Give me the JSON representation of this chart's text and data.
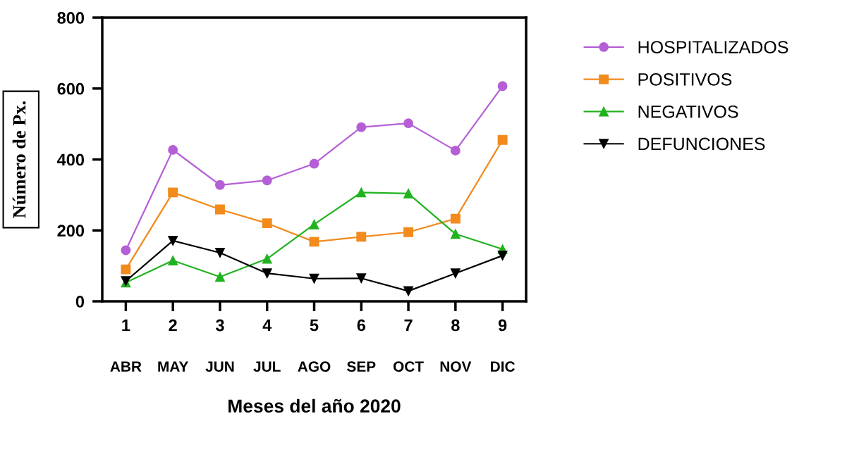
{
  "chart_data": {
    "type": "line",
    "xlabel": "Meses del año 2020",
    "ylabel": "Número de Px.",
    "x": [
      1,
      2,
      3,
      4,
      5,
      6,
      7,
      8,
      9
    ],
    "xlim": [
      0.5,
      9.5
    ],
    "xticks": [
      1,
      2,
      3,
      4,
      5,
      6,
      7,
      8,
      9
    ],
    "ylim": [
      0,
      800
    ],
    "yticks": [
      0,
      200,
      400,
      600,
      800
    ],
    "grid": false,
    "legend": "right",
    "line_style": "solid",
    "annotations": [
      "ABR",
      "MAY",
      "JUN",
      "JUL",
      "AGO",
      "SEP",
      "OCT",
      "NOV",
      "DIC"
    ],
    "series": [
      {
        "name": "HOSPITALIZADOS",
        "color": "#b55fd6",
        "marker": "circle",
        "values": [
          144,
          427,
          328,
          341,
          388,
          491,
          502,
          425,
          607
        ]
      },
      {
        "name": "POSITIVOS",
        "color": "#f28a1c",
        "marker": "square",
        "values": [
          90,
          307,
          259,
          220,
          168,
          182,
          195,
          233,
          455
        ]
      },
      {
        "name": "NEGATIVOS",
        "color": "#21b31f",
        "marker": "triangle",
        "values": [
          53,
          115,
          69,
          120,
          217,
          307,
          304,
          190,
          147
        ]
      },
      {
        "name": "DEFUNCIONES",
        "color": "#000000",
        "marker": "triangle_down",
        "values": [
          57,
          171,
          137,
          79,
          64,
          65,
          29,
          79,
          129
        ]
      }
    ]
  }
}
